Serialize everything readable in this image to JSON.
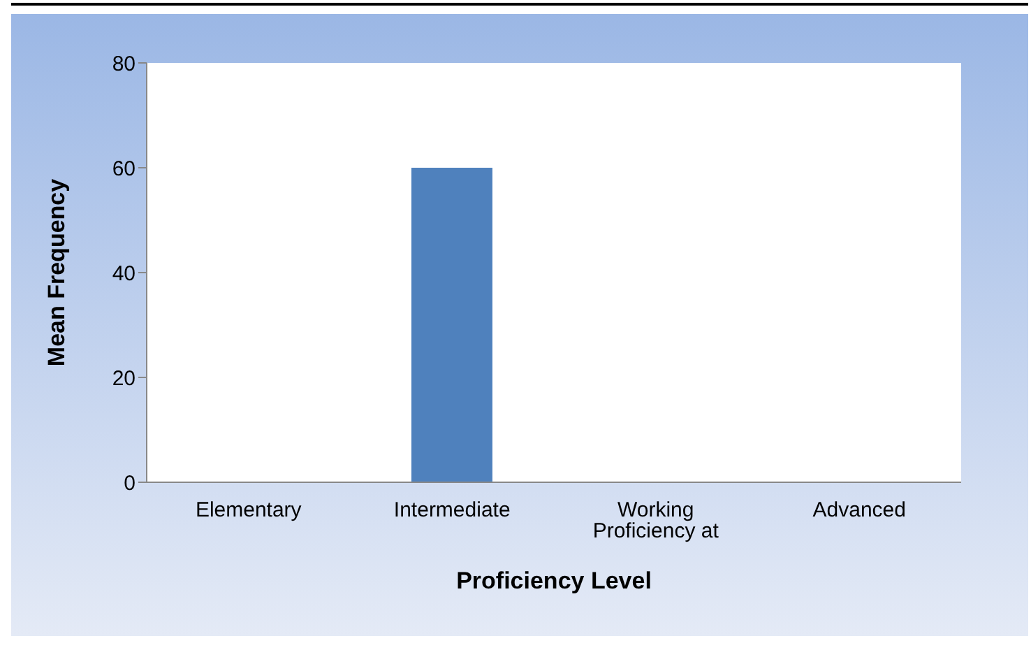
{
  "chart_data": {
    "type": "bar",
    "xlabel": "Proficiency Level",
    "ylabel": "Mean Frequency",
    "categories": [
      "Elementary",
      "Intermediate",
      "Working Proficiency at",
      "Advanced"
    ],
    "values": [
      0,
      60,
      0,
      0
    ],
    "color": "#4f81bd",
    "ylim": [
      0,
      80
    ],
    "yticks": [
      0,
      20,
      40,
      60,
      80
    ]
  }
}
